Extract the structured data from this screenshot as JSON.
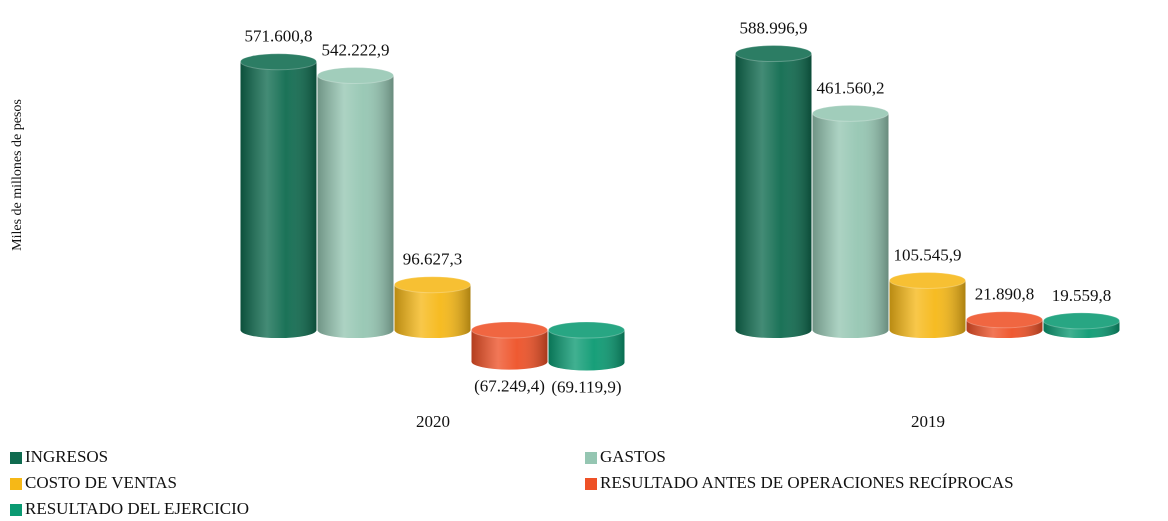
{
  "chart_data": {
    "type": "bar",
    "y_label": "Miles de millones de pesos",
    "categories": [
      "2020",
      "2019"
    ],
    "series": [
      {
        "name": "INGRESOS",
        "color": "#0f6b4f",
        "values": [
          571600.8,
          588996.9
        ],
        "value_labels": [
          "571.600,8",
          "588.996,9"
        ]
      },
      {
        "name": "GASTOS",
        "color": "#95c6b2",
        "values": [
          542222.9,
          461560.2
        ],
        "value_labels": [
          "542.222,9",
          "461.560,2"
        ]
      },
      {
        "name": "COSTO DE VENTAS",
        "color": "#f6b817",
        "values": [
          96627.3,
          105545.9
        ],
        "value_labels": [
          "96.627,3",
          "105.545,9"
        ]
      },
      {
        "name": "RESULTADO ANTES DE OPERACIONES RECÍPROCAS",
        "color": "#ee5127",
        "values": [
          -67249.4,
          21890.8
        ],
        "value_labels": [
          "(67.249,4)",
          "21.890,8"
        ]
      },
      {
        "name": "RESULTADO DEL EJERCICIO",
        "color": "#0b9a72",
        "values": [
          -69119.9,
          19559.8
        ],
        "value_labels": [
          "(69.119,9)",
          "19.559,8"
        ]
      }
    ],
    "ylim": [
      -100000,
      620000
    ]
  }
}
